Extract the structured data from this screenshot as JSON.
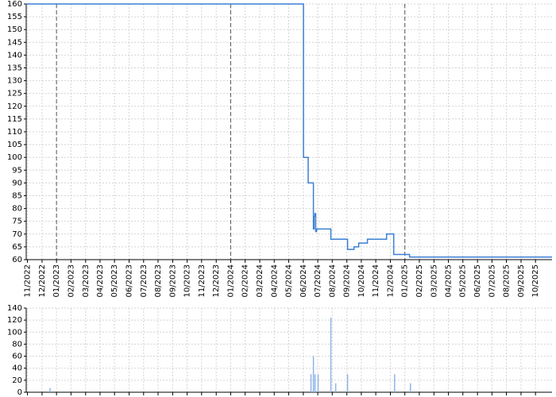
{
  "chart_data": [
    {
      "type": "line",
      "step": "post",
      "grid": true,
      "color": "#3b7fd4",
      "xlim": [
        2022.826,
        2025.845
      ],
      "ylim": [
        60,
        160
      ],
      "yticks": [
        60,
        65,
        70,
        75,
        80,
        85,
        90,
        95,
        100,
        105,
        110,
        115,
        120,
        125,
        130,
        135,
        140,
        145,
        150,
        155,
        160
      ],
      "xticks": [
        {
          "value": 2022.833,
          "label": "11/2022"
        },
        {
          "value": 2022.917,
          "label": "12/2022"
        },
        {
          "value": 2023.0,
          "label": "01/2023"
        },
        {
          "value": 2023.083,
          "label": "02/2023"
        },
        {
          "value": 2023.167,
          "label": "03/2023"
        },
        {
          "value": 2023.25,
          "label": "04/2023"
        },
        {
          "value": 2023.333,
          "label": "05/2023"
        },
        {
          "value": 2023.417,
          "label": "06/2023"
        },
        {
          "value": 2023.5,
          "label": "07/2023"
        },
        {
          "value": 2023.583,
          "label": "08/2023"
        },
        {
          "value": 2023.667,
          "label": "09/2023"
        },
        {
          "value": 2023.75,
          "label": "10/2023"
        },
        {
          "value": 2023.833,
          "label": "11/2023"
        },
        {
          "value": 2023.917,
          "label": "12/2023"
        },
        {
          "value": 2024.0,
          "label": "01/2024"
        },
        {
          "value": 2024.083,
          "label": "02/2024"
        },
        {
          "value": 2024.167,
          "label": "03/2024"
        },
        {
          "value": 2024.25,
          "label": "04/2024"
        },
        {
          "value": 2024.333,
          "label": "05/2024"
        },
        {
          "value": 2024.417,
          "label": "06/2024"
        },
        {
          "value": 2024.5,
          "label": "07/2024"
        },
        {
          "value": 2024.583,
          "label": "08/2024"
        },
        {
          "value": 2024.667,
          "label": "09/2024"
        },
        {
          "value": 2024.75,
          "label": "10/2024"
        },
        {
          "value": 2024.833,
          "label": "11/2024"
        },
        {
          "value": 2024.917,
          "label": "12/2024"
        },
        {
          "value": 2025.0,
          "label": "01/2025"
        },
        {
          "value": 2025.083,
          "label": "02/2025"
        },
        {
          "value": 2025.167,
          "label": "03/2025"
        },
        {
          "value": 2025.25,
          "label": "04/2025"
        },
        {
          "value": 2025.333,
          "label": "05/2025"
        },
        {
          "value": 2025.417,
          "label": "06/2025"
        },
        {
          "value": 2025.5,
          "label": "07/2025"
        },
        {
          "value": 2025.583,
          "label": "08/2025"
        },
        {
          "value": 2025.667,
          "label": "09/2025"
        },
        {
          "value": 2025.75,
          "label": "10/2025"
        }
      ],
      "vlines": [
        2023,
        2024,
        2025
      ],
      "x": [
        2022.826,
        2024.418,
        2024.445,
        2024.475,
        2024.479,
        2024.484,
        2024.488,
        2024.493,
        2024.575,
        2024.671,
        2024.708,
        2024.735,
        2024.785,
        2024.895,
        2024.936,
        2025.027,
        2025.845
      ],
      "values": [
        160,
        100,
        90,
        72,
        77,
        78,
        71,
        72,
        68,
        64,
        65,
        66.5,
        68,
        70,
        62,
        61,
        61
      ]
    },
    {
      "type": "bar",
      "grid": true,
      "color": "#8fb4e6",
      "xlim": [
        2022.826,
        2025.845
      ],
      "ylim": [
        0,
        140
      ],
      "yticks": [
        0,
        20,
        40,
        60,
        80,
        100,
        120,
        140
      ],
      "x": [
        2022.963,
        2024.461,
        2024.475,
        2024.484,
        2024.502,
        2024.575,
        2024.603,
        2024.671,
        2024.941,
        2025.032
      ],
      "values": [
        7,
        30,
        60,
        30,
        30,
        124,
        15,
        30,
        30,
        15
      ]
    }
  ]
}
